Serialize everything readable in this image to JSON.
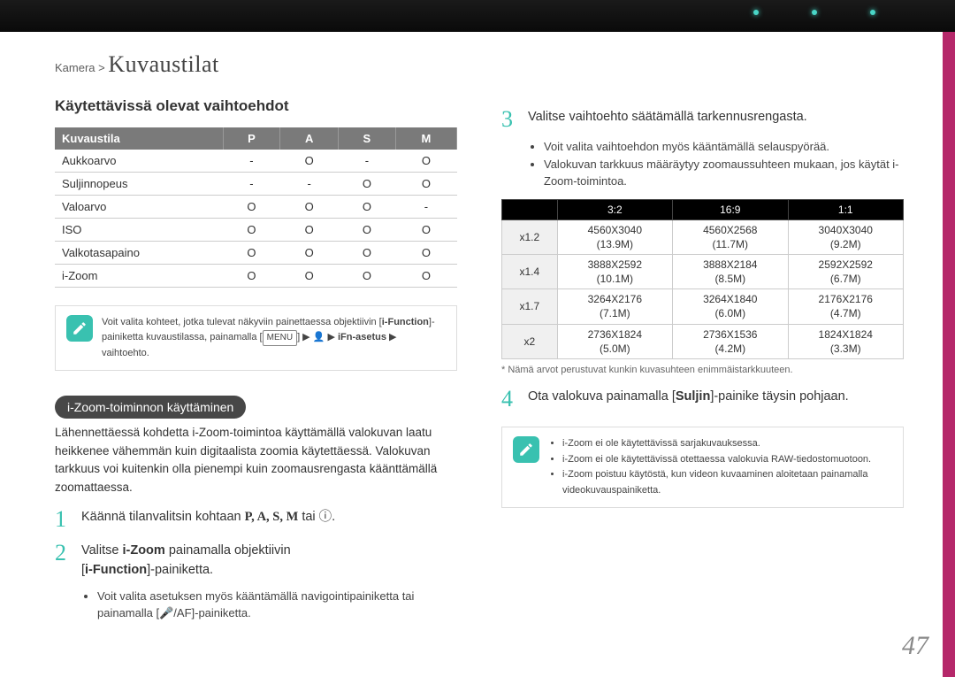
{
  "breadcrumb": {
    "parent": "Kamera >",
    "section": "Kuvaustilat"
  },
  "left": {
    "heading": "Käytettävissä olevat vaihtoehdot",
    "table1": {
      "header": [
        "Kuvaustila",
        "P",
        "A",
        "S",
        "M"
      ],
      "rows": [
        [
          "Aukkoarvo",
          "-",
          "O",
          "-",
          "O"
        ],
        [
          "Suljinnopeus",
          "-",
          "-",
          "O",
          "O"
        ],
        [
          "Valoarvo",
          "O",
          "O",
          "O",
          "-"
        ],
        [
          "ISO",
          "O",
          "O",
          "O",
          "O"
        ],
        [
          "Valkotasapaino",
          "O",
          "O",
          "O",
          "O"
        ],
        [
          "i-Zoom",
          "O",
          "O",
          "O",
          "O"
        ]
      ]
    },
    "note1": {
      "icon_bg": "#39c1b0",
      "pre": "Voit valita kohteet, jotka tulevat näkyviin painettaessa objektiivin [",
      "bold1": "i-Function",
      "mid": "]-painiketta kuvaustilassa, painamalla [",
      "key": "MENU",
      "post": "] ▶ 👤 ▶ iFn-asetus ▶ vaihtoehto."
    },
    "pill": "i-Zoom-toiminnon käyttäminen",
    "intro": "Lähennettäessä kohdetta i-Zoom-toimintoa käyttämällä valokuvan laatu heikkenee vähemmän kuin digitaalista zoomia käytettäessä. Valokuvan tarkkuus voi kuitenkin olla pienempi kuin zoomausrengasta käänttämällä zoomattaessa.",
    "step1": {
      "num": "1",
      "text_pre": "Käännä tilanvalitsin kohtaan ",
      "modes": "P, A, S, M",
      "text_post": " tai ⓘ."
    },
    "step2": {
      "num": "2",
      "line1_pre": "Valitse ",
      "line1_bold": "i-Zoom",
      "line1_post": " painamalla objektiivin",
      "line2_pre": "[",
      "line2_bold": "i-Function",
      "line2_post": "]-painiketta.",
      "sub": "Voit valita asetuksen myös kääntämällä navigointipainiketta tai painamalla [🎤/AF]-painiketta."
    }
  },
  "right": {
    "step3": {
      "num": "3",
      "text": "Valitse vaihtoehto säätämällä tarkennusrengasta.",
      "sub1": "Voit valita vaihtoehdon myös kääntämällä selauspyörää.",
      "sub2": "Valokuvan tarkkuus määräytyy zoomaussuhteen mukaan, jos käytät i-Zoom-toimintoa."
    },
    "table2": {
      "header": [
        "",
        "3:2",
        "16:9",
        "1:1"
      ],
      "rows": [
        [
          "x1.2",
          "4560X3040\n(13.9M)",
          "4560X2568\n(11.7M)",
          "3040X3040\n(9.2M)"
        ],
        [
          "x1.4",
          "3888X2592\n(10.1M)",
          "3888X2184\n(8.5M)",
          "2592X2592\n(6.7M)"
        ],
        [
          "x1.7",
          "3264X2176\n(7.1M)",
          "3264X1840\n(6.0M)",
          "2176X2176\n(4.7M)"
        ],
        [
          "x2",
          "2736X1824\n(5.0M)",
          "2736X1536\n(4.2M)",
          "1824X1824\n(3.3M)"
        ]
      ]
    },
    "footnote": "* Nämä arvot perustuvat kunkin kuvasuhteen enimmäistarkkuuteen.",
    "step4": {
      "num": "4",
      "pre": "Ota valokuva painamalla [",
      "bold": "Suljin",
      "post": "]-painike täysin pohjaan."
    },
    "note2": {
      "icon_bg": "#39c1b0",
      "items": [
        "i-Zoom ei ole käytettävissä sarjakuvauksessa.",
        "i-Zoom ei ole käytettävissä otettaessa valokuvia RAW-tiedostomuotoon.",
        "i-Zoom poistuu käytöstä, kun videon kuvaaminen aloitetaan painamalla videokuvauspainiketta."
      ]
    }
  },
  "page_number": "47",
  "colors": {
    "accent_teal": "#39c1b0",
    "accent_magenta": "#b5286a"
  }
}
